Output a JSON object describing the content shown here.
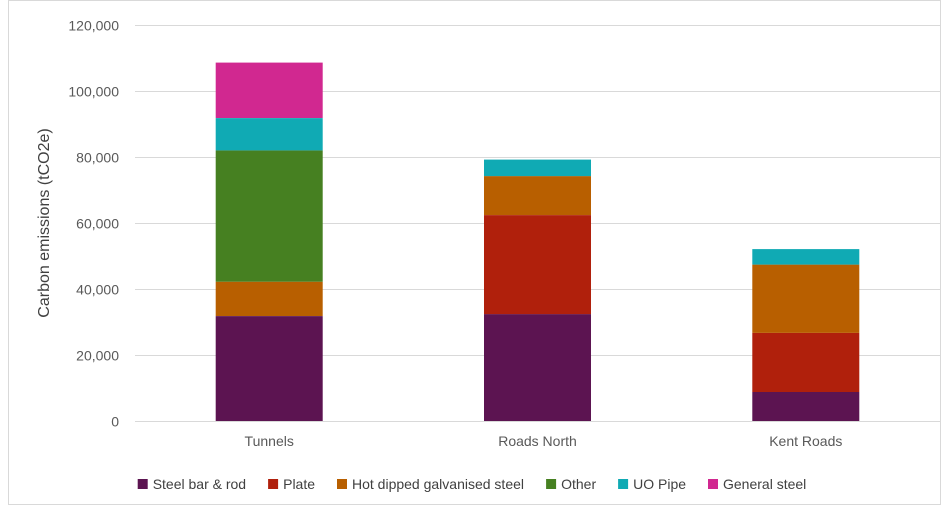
{
  "chart_data": {
    "type": "bar",
    "stacked": true,
    "title": "",
    "xlabel": "",
    "ylabel": "Carbon emissions (tCO2e)",
    "ylim": [
      0,
      120000
    ],
    "yticks": [
      0,
      20000,
      40000,
      60000,
      80000,
      100000,
      120000
    ],
    "ytick_labels": [
      "0",
      "20,000",
      "40,000",
      "60,000",
      "80,000",
      "100,000",
      "120,000"
    ],
    "grid": true,
    "legend_position": "bottom",
    "categories": [
      "Tunnels",
      "Roads North",
      "Kent Roads"
    ],
    "series": [
      {
        "name": "Steel bar & rod",
        "color": "#5c1451",
        "values": [
          31800,
          32400,
          8800
        ]
      },
      {
        "name": "Plate",
        "color": "#b0200c",
        "values": [
          0,
          30000,
          17900
        ]
      },
      {
        "name": "Hot dipped galvanised steel",
        "color": "#b85f00",
        "values": [
          10400,
          11800,
          20700
        ]
      },
      {
        "name": "Other",
        "color": "#468021",
        "values": [
          39800,
          0,
          0
        ]
      },
      {
        "name": "UO Pipe",
        "color": "#10aab4",
        "values": [
          9800,
          5000,
          4700
        ]
      },
      {
        "name": "General steel",
        "color": "#d12890",
        "values": [
          16800,
          0,
          0
        ]
      }
    ]
  }
}
